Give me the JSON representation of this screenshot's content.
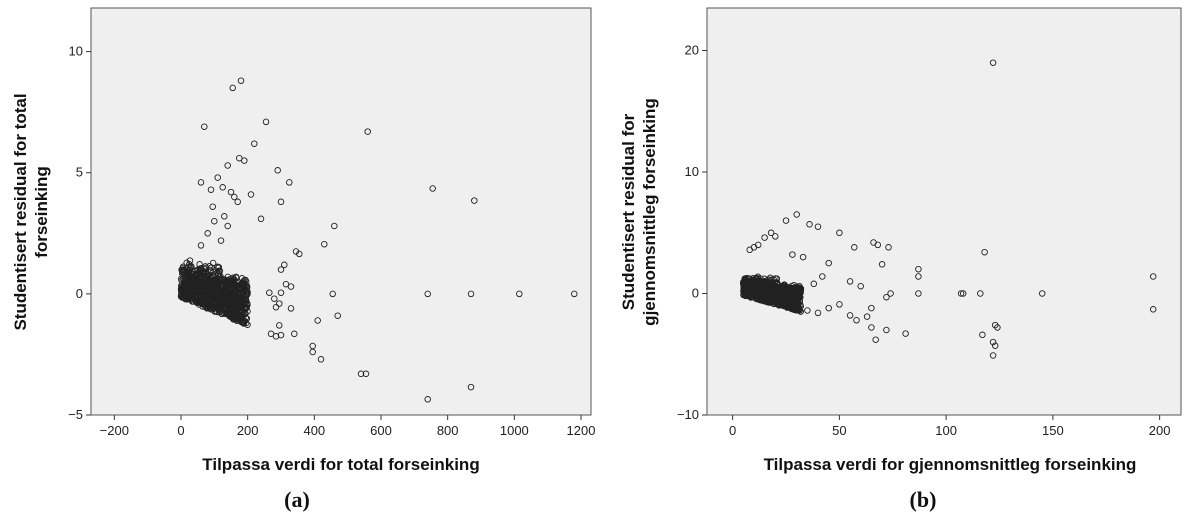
{
  "chart_data": [
    {
      "type": "scatter",
      "panel_label": "(a)",
      "xlabel": "Tilpassa verdi for total forseinking",
      "ylabel_lines": [
        "Studentisert residual for total",
        "forseinking"
      ],
      "xlim": [
        -270,
        1230
      ],
      "ylim": [
        -5,
        11.8
      ],
      "xticks": [
        -200,
        0,
        200,
        400,
        600,
        800,
        1000,
        1200
      ],
      "yticks": [
        -5,
        0,
        5,
        10
      ],
      "xtick_labels": [
        "-200",
        "0",
        "200",
        "400",
        "600",
        "800",
        "1000",
        "1200"
      ],
      "ytick_labels": [
        "-5",
        "0",
        "5",
        "10"
      ],
      "cluster": {
        "x_min": 0,
        "x_max": 200,
        "y_min": -1.3,
        "y_max": 1.4
      },
      "points": [
        [
          70,
          6.9
        ],
        [
          155,
          8.5
        ],
        [
          180,
          8.8
        ],
        [
          255,
          7.1
        ],
        [
          290,
          5.1
        ],
        [
          325,
          4.6
        ],
        [
          220,
          6.2
        ],
        [
          190,
          5.5
        ],
        [
          175,
          5.6
        ],
        [
          140,
          5.3
        ],
        [
          60,
          4.6
        ],
        [
          90,
          4.3
        ],
        [
          110,
          4.8
        ],
        [
          125,
          4.4
        ],
        [
          150,
          4.2
        ],
        [
          160,
          4.0
        ],
        [
          170,
          3.8
        ],
        [
          210,
          4.1
        ],
        [
          240,
          3.1
        ],
        [
          300,
          3.8
        ],
        [
          560,
          6.7
        ],
        [
          755,
          4.35
        ],
        [
          880,
          3.85
        ],
        [
          460,
          2.8
        ],
        [
          430,
          2.05
        ],
        [
          345,
          1.75
        ],
        [
          355,
          1.65
        ],
        [
          310,
          1.2
        ],
        [
          300,
          1.0
        ],
        [
          315,
          0.4
        ],
        [
          330,
          0.3
        ],
        [
          300,
          0.05
        ],
        [
          265,
          0.05
        ],
        [
          280,
          -0.2
        ],
        [
          295,
          -0.4
        ],
        [
          285,
          -0.55
        ],
        [
          330,
          -0.6
        ],
        [
          410,
          -1.1
        ],
        [
          470,
          -0.9
        ],
        [
          295,
          -1.3
        ],
        [
          270,
          -1.65
        ],
        [
          285,
          -1.75
        ],
        [
          300,
          -1.7
        ],
        [
          340,
          -1.65
        ],
        [
          395,
          -2.15
        ],
        [
          395,
          -2.4
        ],
        [
          420,
          -2.7
        ],
        [
          540,
          -3.3
        ],
        [
          555,
          -3.3
        ],
        [
          740,
          -4.35
        ],
        [
          870,
          -3.85
        ],
        [
          455,
          0.0
        ],
        [
          740,
          0.0
        ],
        [
          870,
          0.0
        ],
        [
          1015,
          0.0
        ],
        [
          1180,
          0.0
        ],
        [
          100,
          3.0
        ],
        [
          80,
          2.5
        ],
        [
          120,
          2.2
        ],
        [
          140,
          2.8
        ],
        [
          60,
          2.0
        ],
        [
          95,
          3.6
        ],
        [
          130,
          3.2
        ]
      ]
    },
    {
      "type": "scatter",
      "panel_label": "(b)",
      "xlabel": "Tilpassa verdi for gjennomsnittleg forseinking",
      "ylabel_lines": [
        "Studentisert residual for",
        "gjennomsnittleg forseinking"
      ],
      "xlim": [
        -12,
        210
      ],
      "ylim": [
        -10,
        23.5
      ],
      "xticks": [
        0,
        50,
        100,
        150,
        200
      ],
      "yticks": [
        -10,
        0,
        10,
        20
      ],
      "xtick_labels": [
        "0",
        "50",
        "100",
        "150",
        "200"
      ],
      "ytick_labels": [
        "-10",
        "0",
        "10",
        "20"
      ],
      "cluster": {
        "x_min": 5,
        "x_max": 32,
        "y_min": -1.5,
        "y_max": 1.5
      },
      "points": [
        [
          122,
          19.0
        ],
        [
          30,
          6.5
        ],
        [
          25,
          6.0
        ],
        [
          36,
          5.7
        ],
        [
          40,
          5.5
        ],
        [
          18,
          5.0
        ],
        [
          20,
          4.7
        ],
        [
          15,
          4.6
        ],
        [
          12,
          4.0
        ],
        [
          10,
          3.8
        ],
        [
          8,
          3.6
        ],
        [
          28,
          3.2
        ],
        [
          33,
          3.0
        ],
        [
          45,
          2.5
        ],
        [
          50,
          5.0
        ],
        [
          57,
          3.8
        ],
        [
          66,
          4.2
        ],
        [
          68,
          4.0
        ],
        [
          73,
          3.8
        ],
        [
          70,
          2.4
        ],
        [
          118,
          3.4
        ],
        [
          87,
          2.0
        ],
        [
          87,
          1.4
        ],
        [
          197,
          1.4
        ],
        [
          55,
          1.0
        ],
        [
          60,
          0.6
        ],
        [
          74,
          0.0
        ],
        [
          87,
          0.0
        ],
        [
          107,
          0.0
        ],
        [
          108,
          0.0
        ],
        [
          116,
          0.0
        ],
        [
          145,
          0.0
        ],
        [
          72,
          -0.3
        ],
        [
          50,
          -0.9
        ],
        [
          55,
          -1.8
        ],
        [
          58,
          -2.2
        ],
        [
          63,
          -1.9
        ],
        [
          65,
          -1.2
        ],
        [
          65,
          -2.8
        ],
        [
          67,
          -3.8
        ],
        [
          72,
          -3.0
        ],
        [
          81,
          -3.3
        ],
        [
          117,
          -3.4
        ],
        [
          123,
          -2.6
        ],
        [
          124,
          -2.8
        ],
        [
          122,
          -4.0
        ],
        [
          123,
          -4.3
        ],
        [
          122,
          -5.1
        ],
        [
          197,
          -1.3
        ],
        [
          40,
          -1.6
        ],
        [
          45,
          -1.2
        ],
        [
          35,
          -1.4
        ],
        [
          42,
          1.4
        ],
        [
          38,
          0.8
        ]
      ]
    }
  ]
}
